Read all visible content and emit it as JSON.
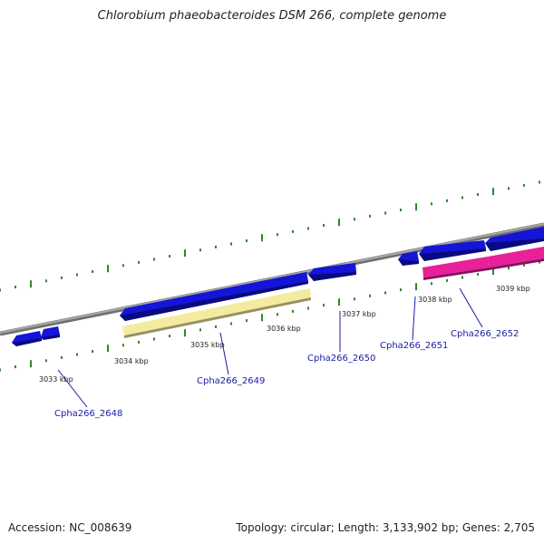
{
  "title": "Chlorobium phaeobacteroides DSM 266, complete genome",
  "footer": {
    "accession": "Accession: NC_008639",
    "summary": "Topology: circular; Length: 3,133,902 bp; Genes: 2,705"
  },
  "colors": {
    "backbone": "#8a8a8a",
    "tick": "#2a8a2a",
    "gene_blue": "#1515d8",
    "gene_yellow": "#f3eca0",
    "gene_pink": "#e8209a",
    "label": "#1a1aa6",
    "leader": "#1a1aa6"
  },
  "scale": {
    "labels": [
      {
        "name": "kbp-3033",
        "text": "3033 kbp"
      },
      {
        "name": "kbp-3034",
        "text": "3034 kbp"
      },
      {
        "name": "kbp-3035",
        "text": "3035 kbp"
      },
      {
        "name": "kbp-3036",
        "text": "3036 kbp"
      },
      {
        "name": "kbp-3037",
        "text": "3037 kbp"
      },
      {
        "name": "kbp-3038",
        "text": "3038 kbp"
      },
      {
        "name": "kbp-3039",
        "text": "3039 kbp"
      }
    ]
  },
  "genes": [
    {
      "name": "gene-cpha266-2648",
      "label": "Cpha266_2648"
    },
    {
      "name": "gene-cpha266-2649",
      "label": "Cpha266_2649"
    },
    {
      "name": "gene-cpha266-2650",
      "label": "Cpha266_2650"
    },
    {
      "name": "gene-cpha266-2651",
      "label": "Cpha266_2651"
    },
    {
      "name": "gene-cpha266-2652",
      "label": "Cpha266_2652"
    }
  ]
}
